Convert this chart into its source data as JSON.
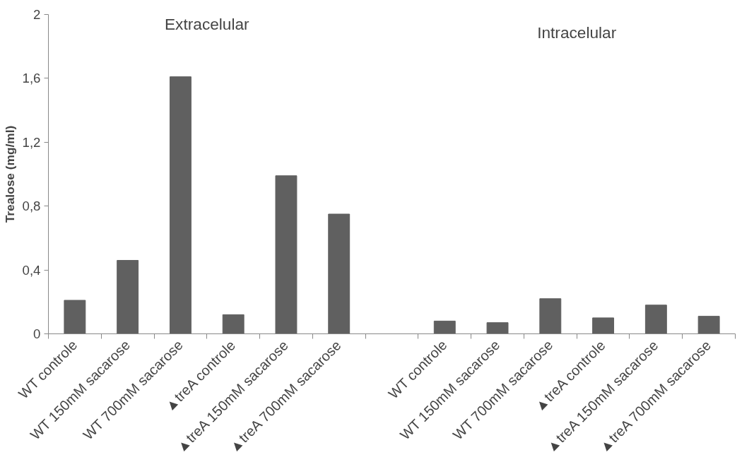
{
  "chart_data": {
    "type": "bar",
    "ylabel": "Trealose (mg/ml)",
    "categories": [
      "WT controle",
      "WT 150mM sacarose",
      "WT 700mM sacarose",
      "▲treA controle",
      "▲treA 150mM sacarose",
      "▲treA 700mM sacarose",
      null,
      "WT controle",
      "WT 150mM sacarose",
      "WT 700mM sacarose",
      "▲treA controle",
      "▲treA 150mM sacarose",
      "▲treA 700mM sacarose"
    ],
    "values": [
      0.21,
      0.46,
      1.61,
      0.12,
      0.99,
      0.75,
      null,
      0.08,
      0.07,
      0.22,
      0.1,
      0.18,
      0.11
    ],
    "color": "#606060",
    "ylim": [
      0,
      2
    ],
    "yticks": [
      0,
      {
        "value": 0.4,
        "label": "0,4"
      },
      {
        "value": 0.8,
        "label": "0,8"
      },
      {
        "value": 1.2,
        "label": "1,2"
      },
      {
        "value": 1.6,
        "label": "1,6"
      },
      2
    ],
    "annotations": [
      "Extracelular",
      "Intracelular"
    ],
    "grid": false
  }
}
